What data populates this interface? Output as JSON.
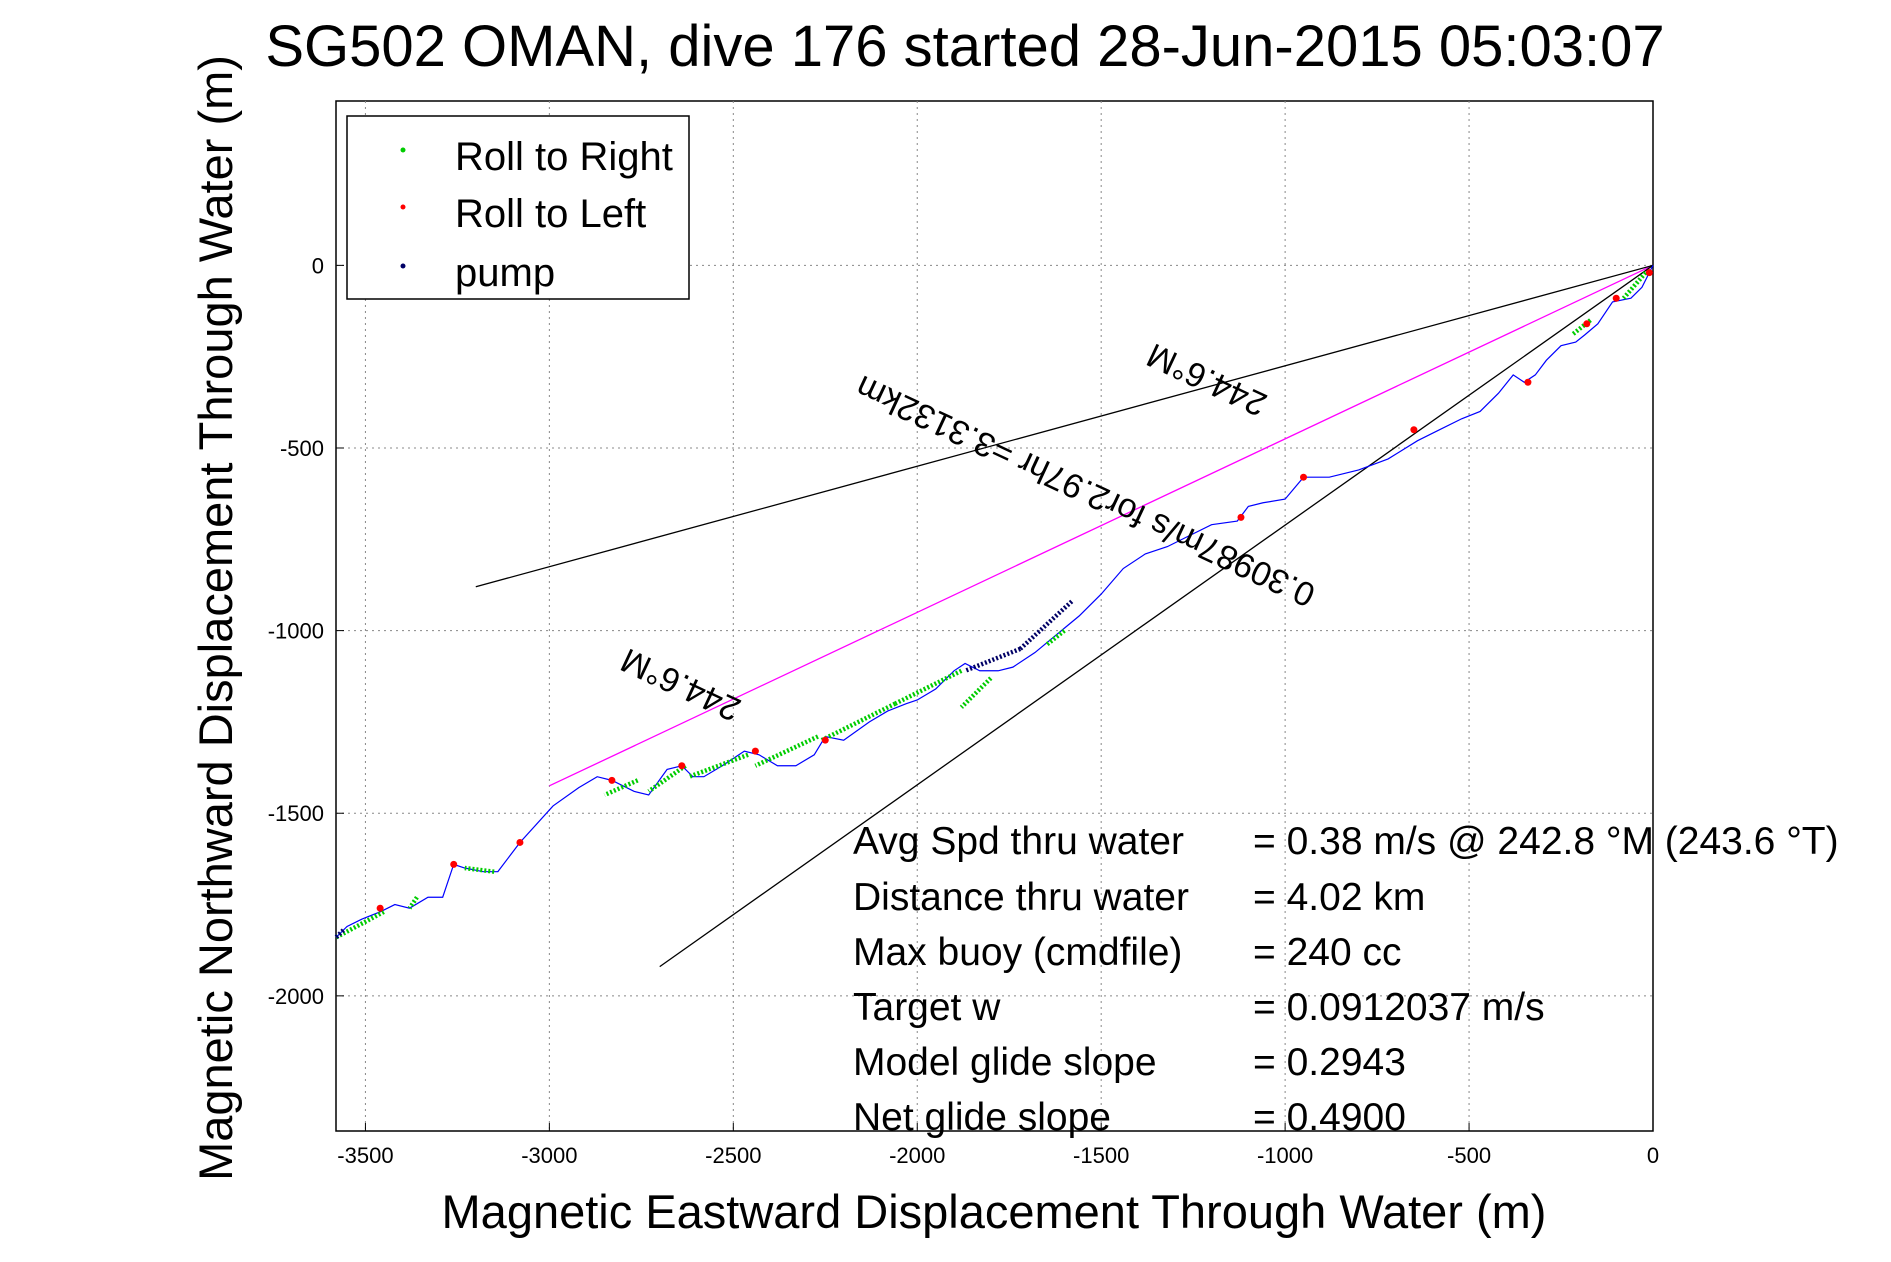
{
  "chart_data": {
    "type": "line",
    "title": "SG502 OMAN, dive 176 started 28-Jun-2015 05:03:07",
    "xlabel": "Magnetic Eastward Displacement Through Water (m)",
    "ylabel": "Magnetic Northward Displacement Through Water (m)",
    "xlim": [
      -3580,
      0
    ],
    "ylim": [
      -2370,
      450
    ],
    "xticks": [
      -3500,
      -3000,
      -2500,
      -2000,
      -1500,
      -1000,
      -500,
      0
    ],
    "yticks": [
      0,
      -500,
      -1000,
      -1500,
      -2000
    ],
    "grid": true,
    "legend_position": "top-left",
    "legend": [
      {
        "label": "Roll to Right",
        "color": "#00cc00"
      },
      {
        "label": "Roll to Left",
        "color": "#ff0000"
      },
      {
        "label": "pump",
        "color": "#000066"
      }
    ],
    "track": {
      "name": "track",
      "color": "#0000ff",
      "x": [
        0,
        -30,
        -60,
        -110,
        -150,
        -185,
        -210,
        -250,
        -290,
        -320,
        -350,
        -380,
        -420,
        -470,
        -520,
        -580,
        -640,
        -720,
        -800,
        -880,
        -950,
        -1000,
        -1060,
        -1100,
        -1130,
        -1200,
        -1260,
        -1320,
        -1380,
        -1440,
        -1500,
        -1560,
        -1620,
        -1680,
        -1740,
        -1780,
        -1830,
        -1870,
        -1900,
        -1950,
        -2000,
        -2030,
        -2080,
        -2130,
        -2200,
        -2250,
        -2280,
        -2330,
        -2380,
        -2430,
        -2470,
        -2530,
        -2580,
        -2610,
        -2640,
        -2680,
        -2730,
        -2770,
        -2830,
        -2870,
        -2920,
        -2990,
        -3080,
        -3140,
        -3180,
        -3230,
        -3260,
        -3290,
        -3330,
        -3380,
        -3420,
        -3460,
        -3510,
        -3550,
        -3580
      ],
      "y": [
        0,
        -60,
        -90,
        -100,
        -160,
        -190,
        -210,
        -220,
        -260,
        -300,
        -320,
        -300,
        -350,
        -400,
        -420,
        -450,
        -480,
        -530,
        -560,
        -580,
        -580,
        -640,
        -650,
        -660,
        -700,
        -710,
        -740,
        -770,
        -790,
        -830,
        -900,
        -960,
        -1010,
        -1060,
        -1100,
        -1110,
        -1110,
        -1090,
        -1110,
        -1160,
        -1190,
        -1200,
        -1220,
        -1250,
        -1300,
        -1290,
        -1340,
        -1370,
        -1370,
        -1340,
        -1330,
        -1370,
        -1400,
        -1400,
        -1370,
        -1380,
        -1450,
        -1440,
        -1410,
        -1400,
        -1430,
        -1480,
        -1580,
        -1660,
        -1660,
        -1650,
        -1640,
        -1730,
        -1730,
        -1760,
        -1750,
        -1770,
        -1790,
        -1810,
        -1840
      ]
    },
    "roll_right_segments": [
      {
        "x": [
          -1600,
          -1650
        ],
        "y": [
          -1000,
          -1040
        ]
      },
      {
        "x": [
          -1800,
          -1880
        ],
        "y": [
          -1130,
          -1210
        ]
      },
      {
        "x": [
          -1880,
          -2060
        ],
        "y": [
          -1110,
          -1200
        ]
      },
      {
        "x": [
          -2060,
          -2260
        ],
        "y": [
          -1200,
          -1300
        ]
      },
      {
        "x": [
          -2270,
          -2440
        ],
        "y": [
          -1290,
          -1370
        ]
      },
      {
        "x": [
          -2460,
          -2620
        ],
        "y": [
          -1340,
          -1400
        ]
      },
      {
        "x": [
          -2630,
          -2730
        ],
        "y": [
          -1370,
          -1440
        ]
      },
      {
        "x": [
          -2760,
          -2850
        ],
        "y": [
          -1410,
          -1450
        ]
      },
      {
        "x": [
          -3150,
          -3230
        ],
        "y": [
          -1660,
          -1650
        ]
      },
      {
        "x": [
          -3360,
          -3380
        ],
        "y": [
          -1730,
          -1760
        ]
      },
      {
        "x": [
          -3450,
          -3580
        ],
        "y": [
          -1770,
          -1840
        ]
      },
      {
        "x": [
          -20,
          -80
        ],
        "y": [
          -20,
          -90
        ]
      },
      {
        "x": [
          -170,
          -220
        ],
        "y": [
          -150,
          -190
        ]
      }
    ],
    "roll_left_points": {
      "x": [
        -10,
        -100,
        -180,
        -340,
        -650,
        -950,
        -1120,
        -2250,
        -2440,
        -2640,
        -2830,
        -3260,
        -3080,
        -3460
      ],
      "y": [
        -20,
        -90,
        -160,
        -320,
        -450,
        -580,
        -690,
        -1300,
        -1330,
        -1370,
        -1410,
        -1640,
        -1580,
        -1760
      ]
    },
    "pump_segments": [
      {
        "x": [
          -1580,
          -1720
        ],
        "y": [
          -920,
          -1050
        ]
      },
      {
        "x": [
          -1720,
          -1870
        ],
        "y": [
          -1050,
          -1110
        ]
      },
      {
        "x": [
          -3560,
          -3580
        ],
        "y": [
          -1820,
          -1840
        ]
      }
    ],
    "reference_lines": [
      {
        "name": "heading",
        "color": "#ff00ff",
        "x": [
          0,
          -3000
        ],
        "y": [
          0,
          -1425
        ]
      },
      {
        "name": "bound-upper",
        "color": "#000000",
        "x": [
          0,
          -3200
        ],
        "y": [
          0,
          -880
        ]
      },
      {
        "name": "bound-lower",
        "color": "#000000",
        "x": [
          0,
          -2700
        ],
        "y": [
          0,
          -1920
        ]
      }
    ],
    "annotations": [
      {
        "text": "244.6°M",
        "x": -1200,
        "y": -285,
        "angle": 205
      },
      {
        "text": "0.30987m/s for2.97hr =3.3132km",
        "x": -1530,
        "y": -590,
        "angle": 205
      },
      {
        "text": "244.6°M",
        "x": -2630,
        "y": -1120,
        "angle": 205
      }
    ],
    "stats": [
      {
        "label": "Avg Spd thru water",
        "value": "=  0.38 m/s @ 242.8 °M (243.6 °T)"
      },
      {
        "label": "Distance thru water",
        "value": "=  4.02 km"
      },
      {
        "label": "Max buoy (cmdfile)",
        "value": "= 240 cc"
      },
      {
        "label": "Target w",
        "value": "= 0.0912037 m/s"
      },
      {
        "label": "Model glide slope",
        "value": "= 0.2943"
      },
      {
        "label": "Net glide slope",
        "value": "= 0.4900"
      }
    ]
  }
}
